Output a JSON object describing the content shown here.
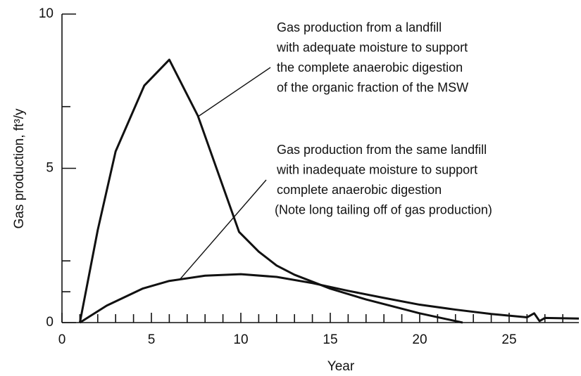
{
  "chart_data": {
    "type": "line",
    "xlabel": "Year",
    "ylabel": "Gas production, ft³/y",
    "xlim": [
      0,
      28.9
    ],
    "ylim": [
      0,
      10
    ],
    "xticks": [
      0,
      5,
      10,
      15,
      20,
      25
    ],
    "yticks": [
      0,
      5,
      10
    ],
    "x_minor_ticks": [
      1,
      2,
      3,
      4,
      6,
      7,
      8,
      9,
      11,
      12,
      13,
      14,
      16,
      17,
      18,
      19,
      21,
      22,
      23,
      24,
      26,
      27,
      28
    ],
    "y_minor_ticks": [
      1,
      2,
      7
    ],
    "series": [
      {
        "name": "Gas production from a landfill with adequate moisture",
        "color": "#111111",
        "x": [
          1,
          2,
          3,
          4.6,
          6,
          7.6,
          9.9,
          11,
          12,
          13,
          15,
          17,
          20,
          22.4
        ],
        "values": [
          0,
          3,
          5.55,
          7.68,
          8.52,
          6.7,
          2.94,
          2.3,
          1.85,
          1.55,
          1.1,
          0.75,
          0.3,
          0
        ]
      },
      {
        "name": "Gas production from the same landfill with inadequate moisture",
        "color": "#111111",
        "x": [
          1,
          2.5,
          4.5,
          6,
          8,
          10,
          12,
          14,
          16,
          18,
          20,
          22,
          24,
          26,
          26.4,
          26.7,
          27,
          28.9
        ],
        "values": [
          0,
          0.55,
          1.1,
          1.35,
          1.52,
          1.57,
          1.48,
          1.28,
          1.03,
          0.8,
          0.58,
          0.42,
          0.28,
          0.17,
          0.3,
          0.05,
          0.15,
          0.13
        ]
      }
    ],
    "annotations": [
      [
        "Gas production from a landfill",
        "with adequate moisture to support",
        "the complete anaerobic digestion",
        "of the organic fraction of the MSW"
      ],
      [
        "Gas production from the same landfill",
        "with inadequate moisture to support",
        "complete anaerobic digestion",
        "(Note long tailing off of gas production)"
      ]
    ]
  }
}
